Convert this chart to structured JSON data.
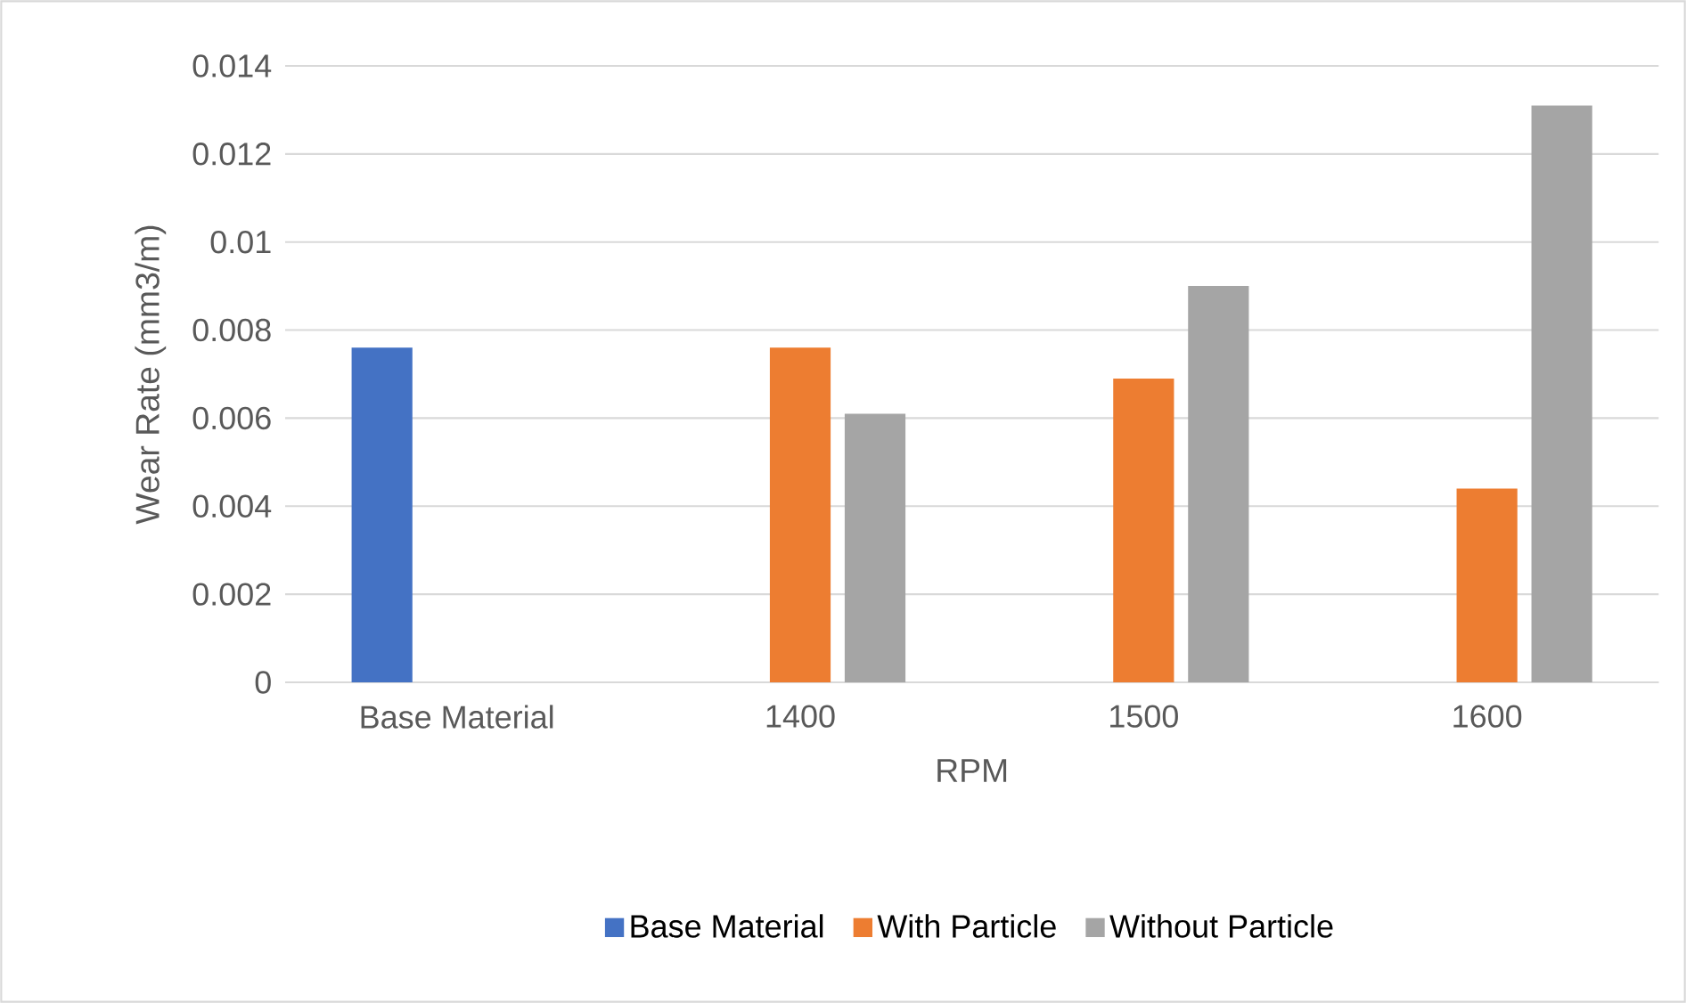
{
  "chart_data": {
    "type": "bar",
    "xlabel": "RPM",
    "ylabel": "Wear Rate (mm3/m)",
    "categories": [
      "Base Material",
      "1400",
      "1500",
      "1600"
    ],
    "series": [
      {
        "name": "Base Material",
        "color": "#4472c4",
        "values": [
          0.0076,
          null,
          null,
          null
        ]
      },
      {
        "name": "With Particle",
        "color": "#ed7d31",
        "values": [
          null,
          0.0076,
          0.0069,
          0.0044
        ]
      },
      {
        "name": "Without Particle",
        "color": "#a5a5a5",
        "values": [
          null,
          0.0061,
          0.009,
          0.0131
        ]
      }
    ],
    "ylim": [
      0,
      0.014
    ],
    "yticks": [
      0,
      0.002,
      0.004,
      0.006,
      0.008,
      0.01,
      0.012,
      0.014
    ],
    "grid": "y",
    "legend": "bottom"
  }
}
